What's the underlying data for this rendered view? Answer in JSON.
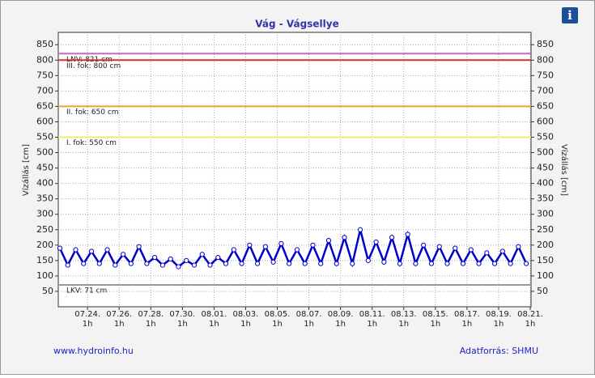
{
  "chart_data": {
    "type": "line",
    "title": "Vág - Vágsellye",
    "ylabel": "Vízállás [cm]",
    "y2label": "Vízállás [cm]",
    "footer_left": "www.hydroinfo.hu",
    "footer_right": "Adatforrás: SHMU",
    "info_icon": "i",
    "ylim": [
      0,
      890
    ],
    "yticks": [
      50,
      100,
      150,
      200,
      250,
      300,
      350,
      400,
      450,
      500,
      550,
      600,
      650,
      700,
      750,
      800,
      850
    ],
    "y2lim": [
      0,
      890
    ],
    "y2ticks": [
      50,
      100,
      150,
      200,
      250,
      300,
      350,
      400,
      450,
      500,
      550,
      600,
      650,
      700,
      750,
      800,
      850
    ],
    "xlim": [
      -1.85,
      28.05
    ],
    "xticks": [
      {
        "value": 0,
        "label": "07.24."
      },
      {
        "value": 2,
        "label": "07.26."
      },
      {
        "value": 4,
        "label": "07.28."
      },
      {
        "value": 6,
        "label": "07.30."
      },
      {
        "value": 8,
        "label": "08.01."
      },
      {
        "value": 10,
        "label": "08.03."
      },
      {
        "value": 12,
        "label": "08.05."
      },
      {
        "value": 14,
        "label": "08.07."
      },
      {
        "value": 16,
        "label": "08.09."
      },
      {
        "value": 18,
        "label": "08.11."
      },
      {
        "value": 20,
        "label": "08.13."
      },
      {
        "value": 22,
        "label": "08.15."
      },
      {
        "value": 24,
        "label": "08.17."
      },
      {
        "value": 26,
        "label": "08.19."
      },
      {
        "value": 28,
        "label": "08.21."
      }
    ],
    "xtick_hour": "1h",
    "grid": true,
    "reference_lines": [
      {
        "label": "LNV: 821 cm",
        "value": 821,
        "color": "#cc66cc"
      },
      {
        "label": "III. fok: 800 cm",
        "value": 800,
        "color": "#cc3333"
      },
      {
        "label": "II. fok: 650 cm",
        "value": 650,
        "color": "#f0a030"
      },
      {
        "label": "I. fok: 550 cm",
        "value": 550,
        "color": "#eeee66"
      },
      {
        "label": "LKV: 71 cm",
        "value": 71,
        "color": "#999999"
      }
    ],
    "series": [
      {
        "color": "#0000cc",
        "x": [
          -1.75,
          -1.25,
          -0.75,
          -0.25,
          0.25,
          0.75,
          1.25,
          1.75,
          2.25,
          2.75,
          3.25,
          3.75,
          4.25,
          4.75,
          5.25,
          5.75,
          6.25,
          6.75,
          7.25,
          7.75,
          8.25,
          8.75,
          9.25,
          9.75,
          10.25,
          10.75,
          11.25,
          11.75,
          12.25,
          12.75,
          13.25,
          13.75,
          14.25,
          14.75,
          15.25,
          15.75,
          16.25,
          16.75,
          17.25,
          17.75,
          18.25,
          18.75,
          19.25,
          19.75,
          20.25,
          20.75,
          21.25,
          21.75,
          22.25,
          22.75,
          23.25,
          23.75,
          24.25,
          24.75,
          25.25,
          25.75,
          26.25,
          26.75,
          27.25,
          27.75
        ],
        "values": [
          190,
          135,
          185,
          140,
          180,
          140,
          185,
          135,
          170,
          140,
          195,
          140,
          160,
          135,
          155,
          130,
          150,
          135,
          170,
          135,
          160,
          140,
          185,
          140,
          200,
          140,
          195,
          145,
          205,
          140,
          185,
          140,
          200,
          140,
          215,
          140,
          225,
          140,
          250,
          150,
          210,
          145,
          225,
          140,
          235,
          140,
          200,
          140,
          195,
          140,
          190,
          140,
          185,
          140,
          175,
          140,
          180,
          140,
          195,
          140
        ]
      }
    ]
  }
}
